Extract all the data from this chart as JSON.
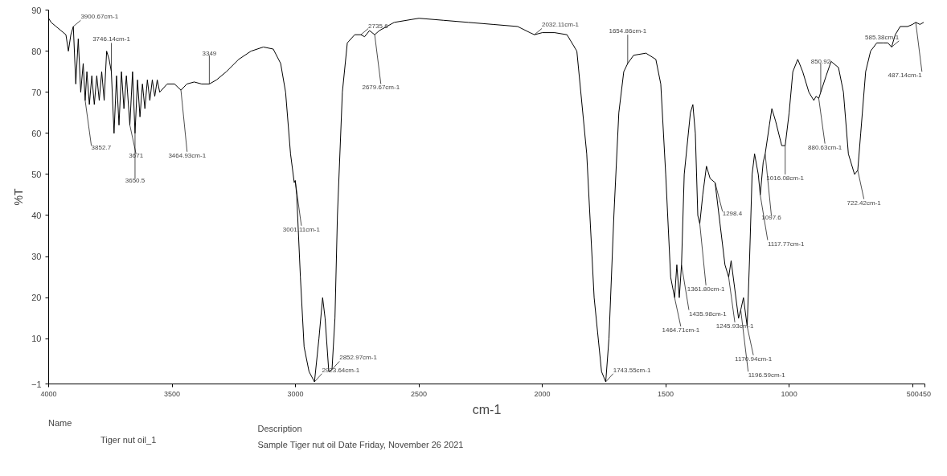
{
  "chart_data": {
    "type": "line",
    "xlabel": "cm-1",
    "ylabel": "%T",
    "legend_title": "Name",
    "legend": "bottom",
    "grid": false,
    "xlim": [
      4000,
      450
    ],
    "xticks": [
      4000,
      3500,
      3000,
      2500,
      2000,
      1500,
      1000,
      500,
      450
    ],
    "ylim": [
      -1,
      90
    ],
    "yticks": [
      -1,
      10,
      20,
      30,
      40,
      50,
      60,
      70,
      80,
      90
    ],
    "series": [
      {
        "name": "Tiger nut oil_1",
        "color": "#000000",
        "x": [
          4000,
          3990,
          3970,
          3950,
          3930,
          3920,
          3910,
          3900,
          3890,
          3880,
          3870,
          3860,
          3852,
          3845,
          3835,
          3825,
          3815,
          3805,
          3795,
          3785,
          3775,
          3765,
          3755,
          3746,
          3735,
          3725,
          3715,
          3705,
          3695,
          3685,
          3671,
          3660,
          3650,
          3640,
          3630,
          3620,
          3610,
          3600,
          3590,
          3580,
          3570,
          3560,
          3550,
          3520,
          3490,
          3464,
          3440,
          3410,
          3380,
          3349,
          3320,
          3280,
          3230,
          3180,
          3130,
          3090,
          3060,
          3040,
          3020,
          3005,
          3001,
          2995,
          2980,
          2965,
          2945,
          2923,
          2905,
          2890,
          2880,
          2865,
          2852,
          2840,
          2830,
          2810,
          2790,
          2760,
          2735,
          2720,
          2700,
          2679,
          2660,
          2600,
          2500,
          2400,
          2300,
          2200,
          2100,
          2050,
          2032,
          2000,
          1950,
          1900,
          1860,
          1820,
          1790,
          1760,
          1743,
          1730,
          1710,
          1690,
          1670,
          1654,
          1630,
          1580,
          1540,
          1520,
          1500,
          1480,
          1464,
          1455,
          1445,
          1436,
          1425,
          1400,
          1390,
          1380,
          1370,
          1362,
          1350,
          1335,
          1320,
          1300,
          1280,
          1260,
          1245,
          1235,
          1220,
          1205,
          1196,
          1185,
          1170,
          1160,
          1150,
          1140,
          1125,
          1117,
          1105,
          1097,
          1080,
          1070,
          1055,
          1030,
          1016,
          1000,
          985,
          965,
          945,
          920,
          900,
          891,
          880,
          872,
          850,
          830,
          800,
          780,
          760,
          735,
          722,
          710,
          690,
          670,
          645,
          620,
          600,
          585,
          570,
          550,
          520,
          500,
          487,
          470,
          455
        ],
        "values": [
          88,
          87,
          86,
          85,
          84,
          80,
          84,
          86,
          72,
          83,
          70,
          77,
          68,
          75,
          67,
          74,
          67,
          74,
          68,
          75,
          68,
          80,
          78,
          75,
          60,
          74,
          62,
          75,
          66,
          74,
          62,
          75,
          60,
          73,
          64,
          72,
          66,
          73,
          68,
          73,
          69,
          73,
          70,
          72,
          72,
          70.5,
          72,
          72.5,
          72,
          72,
          73,
          75,
          78,
          80,
          81,
          80.5,
          77,
          70,
          55,
          48,
          48.5,
          45,
          25,
          8,
          2,
          -0.5,
          10,
          20,
          15,
          2,
          2.5,
          15,
          40,
          70,
          82,
          84,
          84,
          83.5,
          85,
          84,
          85,
          87,
          88,
          87.5,
          87,
          86.5,
          86,
          84.5,
          84,
          84.5,
          84.5,
          84,
          80,
          55,
          20,
          2,
          -0.5,
          10,
          40,
          65,
          75,
          77,
          79,
          79.5,
          78,
          72,
          50,
          25,
          20,
          28,
          20,
          28,
          50,
          65,
          67,
          60,
          40,
          38,
          45,
          52,
          49,
          48,
          38,
          28,
          25,
          29,
          22,
          15,
          17,
          20,
          13,
          30,
          50,
          55,
          50,
          45,
          53,
          55,
          62,
          66,
          63,
          57,
          57,
          65,
          75,
          78,
          75,
          70,
          68,
          69,
          68.5,
          70,
          74,
          77.5,
          76,
          70,
          55,
          50,
          51,
          60,
          75,
          80,
          82,
          82,
          82,
          81,
          84,
          86,
          86,
          86.5,
          87,
          86.5,
          87
        ]
      }
    ],
    "annotations": [
      {
        "text": "3900.67cm-1",
        "x": 3900,
        "y": 86
      },
      {
        "text": "3852.7",
        "x": 3852,
        "y": 68
      },
      {
        "text": "3746.14cm-1",
        "x": 3746,
        "y": 75
      },
      {
        "text": "3671",
        "x": 3671,
        "y": 62
      },
      {
        "text": "3650.5",
        "x": 3650,
        "y": 60
      },
      {
        "text": "3464.93cm-1",
        "x": 3464,
        "y": 70.5
      },
      {
        "text": "3349",
        "x": 3349,
        "y": 72
      },
      {
        "text": "3001.11cm-1",
        "x": 3001,
        "y": 48.5
      },
      {
        "text": "2923.64cm-1",
        "x": 2923,
        "y": -0.5
      },
      {
        "text": "2852.97cm-1",
        "x": 2852,
        "y": 2.5
      },
      {
        "text": "2735.6",
        "x": 2735,
        "y": 84
      },
      {
        "text": "2679.67cm-1",
        "x": 2679,
        "y": 84
      },
      {
        "text": "2032.11cm-1",
        "x": 2032,
        "y": 84
      },
      {
        "text": "1743.55cm-1",
        "x": 1743,
        "y": -0.5
      },
      {
        "text": "1654.86cm-1",
        "x": 1654,
        "y": 77
      },
      {
        "text": "1464.71cm-1",
        "x": 1464,
        "y": 20
      },
      {
        "text": "1435.98cm-1",
        "x": 1436,
        "y": 28
      },
      {
        "text": "1361.80cm-1",
        "x": 1362,
        "y": 38
      },
      {
        "text": "1298.4",
        "x": 1300,
        "y": 48
      },
      {
        "text": "1245.93cm-1",
        "x": 1245,
        "y": 25
      },
      {
        "text": "1196.59cm-1",
        "x": 1196,
        "y": 17
      },
      {
        "text": "1170.94cm-1",
        "x": 1170,
        "y": 13
      },
      {
        "text": "1117.77cm-1",
        "x": 1117,
        "y": 45
      },
      {
        "text": "1097.6",
        "x": 1097,
        "y": 55
      },
      {
        "text": "1016.08cm-1",
        "x": 1016,
        "y": 57
      },
      {
        "text": "880.63cm-1",
        "x": 880,
        "y": 68.5
      },
      {
        "text": "850.92",
        "x": 872,
        "y": 70
      },
      {
        "text": "722.42cm-1",
        "x": 722,
        "y": 51
      },
      {
        "text": "585.38cm-1",
        "x": 585,
        "y": 81
      },
      {
        "text": "487.14cm-1",
        "x": 487,
        "y": 87
      },
      "Description",
      "Sample Tiger nut oil Date Friday, November 26 2021"
    ]
  }
}
